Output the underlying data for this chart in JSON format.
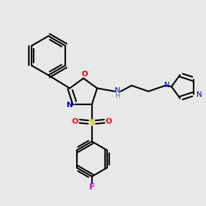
{
  "background_color": "#e8e8e8",
  "line_color": "#000000",
  "bond_width": 1.6,
  "figsize": [
    3.0,
    3.0
  ],
  "dpi": 100,
  "colors": {
    "N": "#0000cc",
    "O": "#ff0000",
    "S": "#cccc00",
    "F": "#dd00dd",
    "C": "#000000",
    "H": "#558888"
  },
  "xlim": [
    0,
    10
  ],
  "ylim": [
    0,
    10
  ]
}
